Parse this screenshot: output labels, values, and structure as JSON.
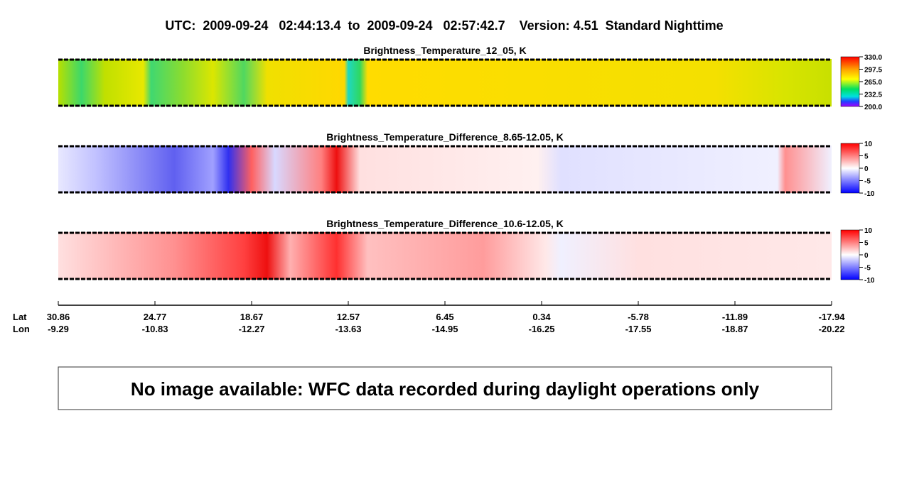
{
  "header": {
    "title": "UTC:  2009-09-24   02:44:13.4  to  2009-09-24   02:57:42.7    Version: 4.51  Standard Nighttime"
  },
  "panels": [
    {
      "title": "Brightness_Temperature_12_05, K",
      "colorbar_ticks": [
        "330.0",
        "297.5",
        "265.0",
        "232.5",
        "200.0"
      ]
    },
    {
      "title": "Brightness_Temperature_Difference_8.65-12.05, K",
      "colorbar_ticks": [
        "10",
        "5",
        "0",
        "-5",
        "-10"
      ]
    },
    {
      "title": "Brightness_Temperature_Difference_10.6-12.05, K",
      "colorbar_ticks": [
        "10",
        "5",
        "0",
        "-5",
        "-10"
      ]
    }
  ],
  "axis": {
    "lat_label": "Lat",
    "lon_label": "Lon",
    "lat": [
      "30.86",
      "24.77",
      "18.67",
      "12.57",
      "6.45",
      "0.34",
      "-5.78",
      "-11.89",
      "-17.94"
    ],
    "lon": [
      "-9.29",
      "-10.83",
      "-12.27",
      "-13.63",
      "-14.95",
      "-16.25",
      "-17.55",
      "-18.87",
      "-20.22"
    ]
  },
  "message": "No image available: WFC data recorded during daylight operations only"
}
